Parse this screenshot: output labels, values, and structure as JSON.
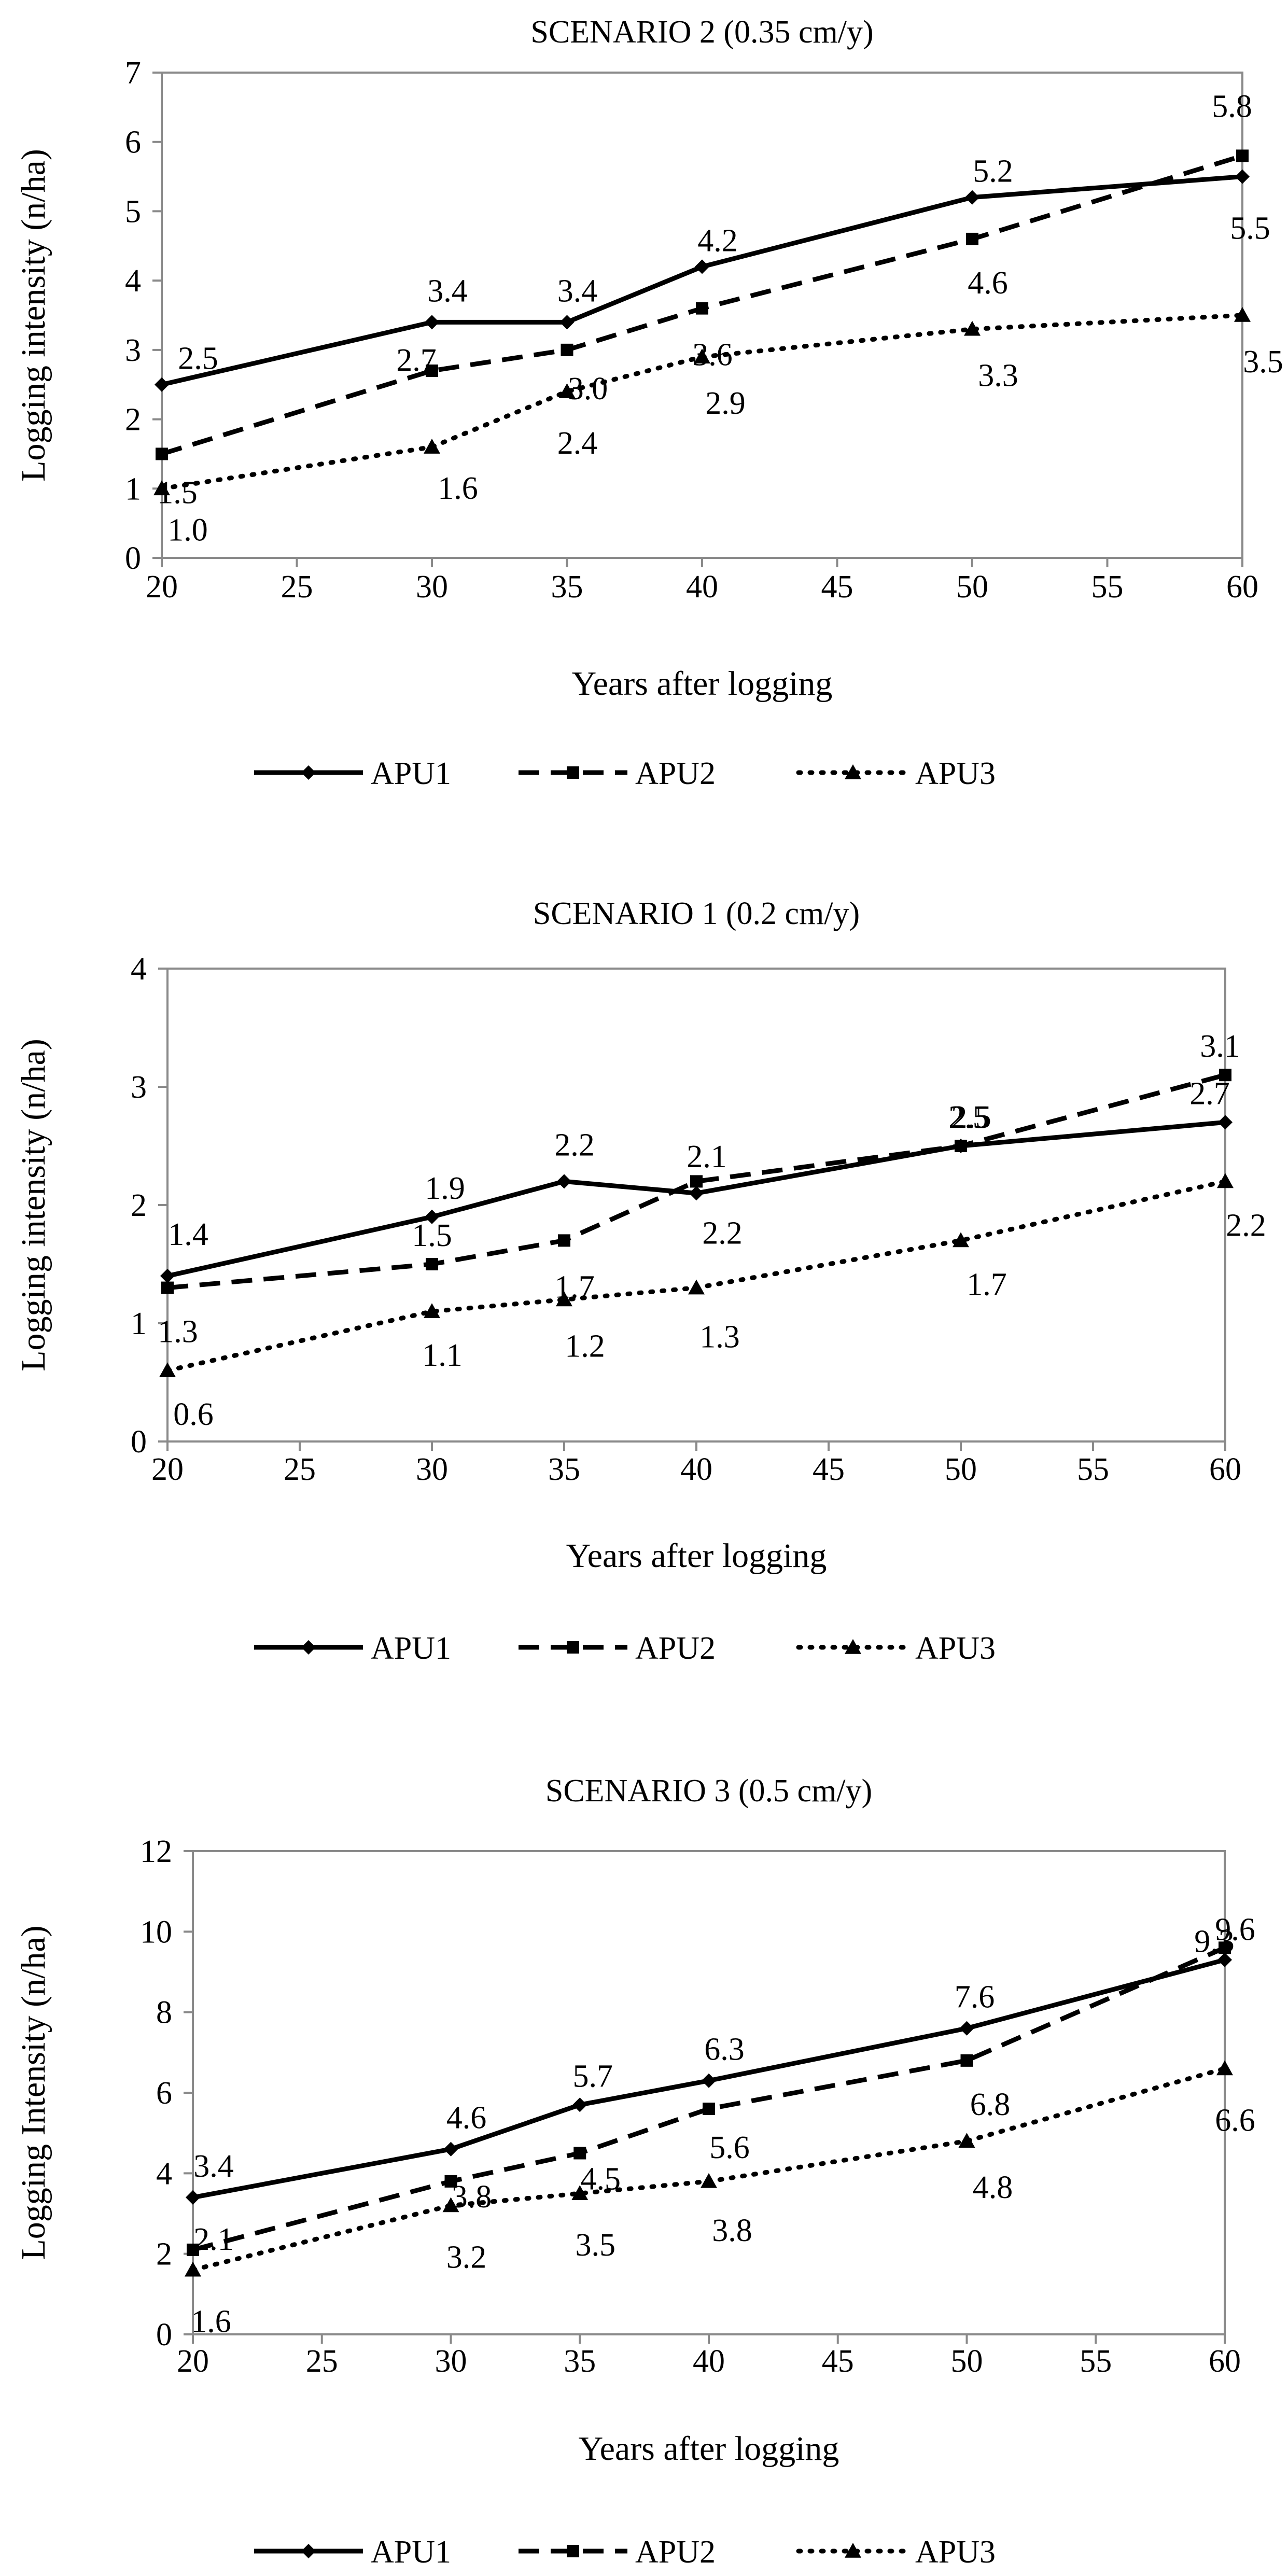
{
  "chart_data": [
    {
      "type": "line",
      "title": "SCENARIO 2 (0.35 cm/y)",
      "xlabel": "Years after logging",
      "ylabel": "Logging intensity (n/ha)",
      "xlim": [
        20,
        60
      ],
      "ylim": [
        0,
        7
      ],
      "xticks": [
        "20",
        "25",
        "30",
        "35",
        "40",
        "45",
        "50",
        "55",
        "60"
      ],
      "yticks": [
        "0",
        "1",
        "2",
        "3",
        "4",
        "5",
        "6",
        "7"
      ],
      "x": [
        20,
        30,
        35,
        40,
        50,
        60
      ],
      "legend_position": "bottom",
      "series": [
        {
          "name": "APU1",
          "values": [
            2.5,
            3.4,
            3.4,
            4.2,
            5.2,
            5.5
          ],
          "labels": [
            "2.5",
            "3.4",
            "3.4",
            "4.2",
            "5.2",
            "5.5"
          ]
        },
        {
          "name": "APU2",
          "values": [
            1.5,
            2.7,
            3.0,
            3.6,
            4.6,
            5.8
          ],
          "labels": [
            "1.5",
            "2.7",
            "3.0",
            "3.6",
            "4.6",
            "5.8"
          ]
        },
        {
          "name": "APU3",
          "values": [
            1.0,
            1.6,
            2.4,
            2.9,
            3.3,
            3.5
          ],
          "labels": [
            "1.0",
            "1.6",
            "2.4",
            "2.9",
            "3.3",
            "3.5"
          ]
        }
      ]
    },
    {
      "type": "line",
      "title": "SCENARIO 1 (0.2 cm/y)",
      "xlabel": "Years after logging",
      "ylabel": "Logging intensity (n/ha)",
      "xlim": [
        20,
        60
      ],
      "ylim": [
        0,
        4
      ],
      "xticks": [
        "20",
        "25",
        "30",
        "35",
        "40",
        "45",
        "50",
        "55",
        "60"
      ],
      "yticks": [
        "0",
        "1",
        "2",
        "3",
        "4"
      ],
      "x": [
        20,
        30,
        35,
        40,
        50,
        60
      ],
      "legend_position": "bottom",
      "series": [
        {
          "name": "APU1",
          "values": [
            1.4,
            1.9,
            2.2,
            2.1,
            2.5,
            2.7
          ],
          "labels": [
            "1.4",
            "1.9",
            "2.2",
            "2.1",
            "2.5",
            "2.7"
          ]
        },
        {
          "name": "APU2",
          "values": [
            1.3,
            1.5,
            1.7,
            2.2,
            2.5,
            3.1
          ],
          "labels": [
            "1.3",
            "1.5",
            "1.7",
            "2.2",
            "2.5",
            "3.1"
          ]
        },
        {
          "name": "APU3",
          "values": [
            0.6,
            1.1,
            1.2,
            1.3,
            1.7,
            2.2
          ],
          "labels": [
            "0.6",
            "1.1",
            "1.2",
            "1.3",
            "1.7",
            "2.2"
          ]
        }
      ]
    },
    {
      "type": "line",
      "title": "SCENARIO 3 (0.5 cm/y)",
      "xlabel": "Years after logging",
      "ylabel": "Logging Intensity (n/ha)",
      "xlim": [
        20,
        60
      ],
      "ylim": [
        0,
        12
      ],
      "xticks": [
        "20",
        "25",
        "30",
        "35",
        "40",
        "45",
        "50",
        "55",
        "60"
      ],
      "yticks": [
        "0",
        "2",
        "4",
        "6",
        "8",
        "10",
        "12"
      ],
      "x": [
        20,
        30,
        35,
        40,
        50,
        60
      ],
      "legend_position": "bottom",
      "series": [
        {
          "name": "APU1",
          "values": [
            3.4,
            4.6,
            5.7,
            6.3,
            7.6,
            9.3
          ],
          "labels": [
            "3.4",
            "4.6",
            "5.7",
            "6.3",
            "7.6",
            "9.3"
          ]
        },
        {
          "name": "APU2",
          "values": [
            2.1,
            3.8,
            4.5,
            5.6,
            6.8,
            9.6
          ],
          "labels": [
            "2.1",
            "3.8",
            "4.5",
            "5.6",
            "6.8",
            "9.6"
          ]
        },
        {
          "name": "APU3",
          "values": [
            1.6,
            3.2,
            3.5,
            3.8,
            4.8,
            6.6
          ],
          "labels": [
            "1.6",
            "3.2",
            "3.5",
            "3.8",
            "4.8",
            "6.6"
          ]
        }
      ]
    }
  ]
}
